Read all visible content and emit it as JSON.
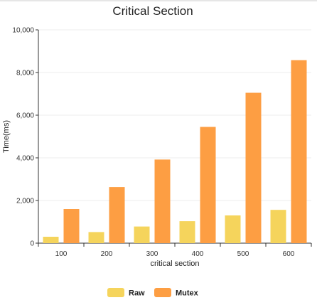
{
  "chart_data": {
    "type": "bar",
    "title": "Critical Section",
    "xlabel": "critical section",
    "ylabel": "Time(ms)",
    "categories": [
      "100",
      "200",
      "300",
      "400",
      "500",
      "600"
    ],
    "ylim": [
      0,
      10000
    ],
    "yticks": [
      0,
      2000,
      4000,
      6000,
      8000,
      10000
    ],
    "ytick_labels": [
      "0",
      "2,000",
      "4,000",
      "6,000",
      "8,000",
      "10,000"
    ],
    "grid": true,
    "legend_position": "bottom",
    "series": [
      {
        "name": "Raw",
        "color": "#f5d45c",
        "values": [
          300,
          520,
          780,
          1030,
          1300,
          1560
        ]
      },
      {
        "name": "Mutex",
        "color": "#fd9e43",
        "values": [
          1600,
          2630,
          3920,
          5450,
          7050,
          8580
        ]
      }
    ]
  }
}
